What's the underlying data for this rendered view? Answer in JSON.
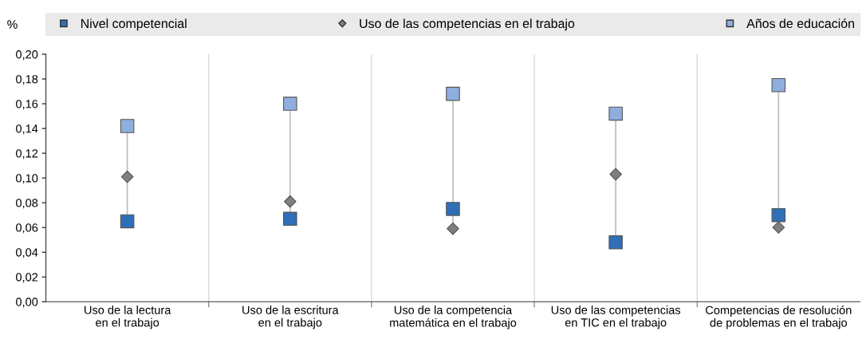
{
  "chart_data": {
    "type": "scatter",
    "ylabel": "%",
    "categories": [
      "Uso de la lectura\nen el trabajo",
      "Uso de la escritura\nen el trabajo",
      "Uso de la competencia\nmatemática en el trabajo",
      "Uso de las competencias\nen TIC en el trabajo",
      "Competencias de resolución\nde problemas en el trabajo"
    ],
    "series": [
      {
        "name": "Nivel competencial",
        "color": "#2e6fb7",
        "marker": "square",
        "values": [
          0.065,
          0.067,
          0.075,
          0.048,
          0.07
        ]
      },
      {
        "name": "Uso de las competencias en el trabajo",
        "color": "#7f7f7f",
        "marker": "diamond",
        "values": [
          0.101,
          0.081,
          0.059,
          0.103,
          0.06
        ]
      },
      {
        "name": "Años de educación",
        "color": "#8eaede",
        "marker": "square",
        "values": [
          0.142,
          0.16,
          0.168,
          0.152,
          0.175
        ]
      }
    ],
    "ylim": [
      0,
      0.2
    ],
    "yticks": [
      {
        "value": 0,
        "label": "0,00"
      },
      {
        "value": 0.02,
        "label": "0,02"
      },
      {
        "value": 0.04,
        "label": "0,04"
      },
      {
        "value": 0.06,
        "label": "0,06"
      },
      {
        "value": 0.08,
        "label": "0,08"
      },
      {
        "value": 0.1,
        "label": "0,10"
      },
      {
        "value": 0.12,
        "label": "0,12"
      },
      {
        "value": 0.14,
        "label": "0,14"
      },
      {
        "value": 0.16,
        "label": "0,16"
      },
      {
        "value": 0.18,
        "label": "0,18"
      },
      {
        "value": 0.2,
        "label": "0,20"
      }
    ],
    "grid": "x",
    "legend": "top"
  }
}
